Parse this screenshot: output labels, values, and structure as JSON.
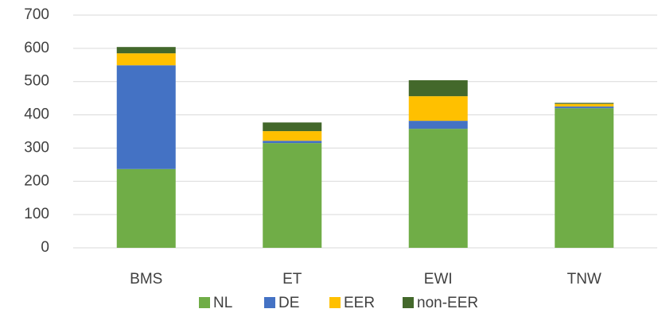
{
  "chart_data": {
    "type": "stacked_bar",
    "categories": [
      "BMS",
      "ET",
      "EWI",
      "TNW"
    ],
    "series": [
      {
        "name": "NL",
        "color": "#70ad47",
        "values": [
          237,
          315,
          358,
          420
        ]
      },
      {
        "name": "DE",
        "color": "#4472c4",
        "values": [
          312,
          7,
          24,
          5
        ]
      },
      {
        "name": "EER",
        "color": "#ffc000",
        "values": [
          36,
          29,
          74,
          8
        ]
      },
      {
        "name": "non-EER",
        "color": "#43682b",
        "values": [
          19,
          26,
          48,
          3
        ]
      }
    ],
    "ylim": [
      0,
      700
    ],
    "yticks": [
      0,
      100,
      200,
      300,
      400,
      500,
      600,
      700
    ],
    "grid": true,
    "legend": "bottom"
  }
}
